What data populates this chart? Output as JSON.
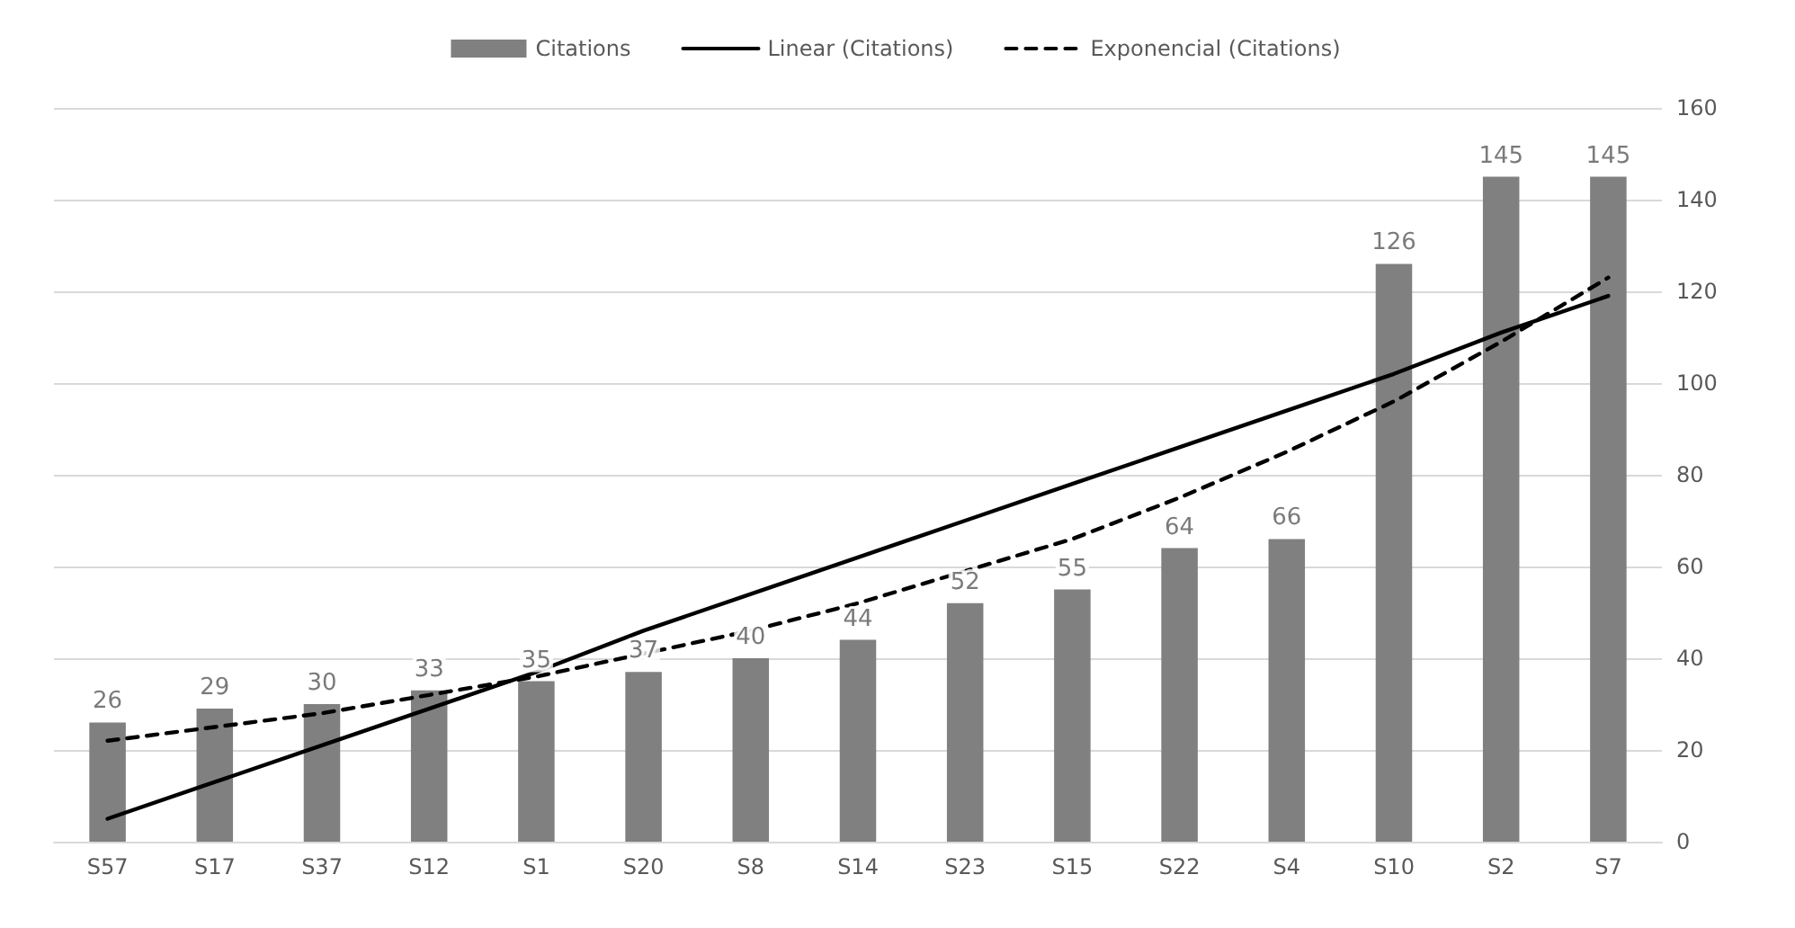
{
  "chart_data": {
    "type": "bar",
    "categories": [
      "S57",
      "S17",
      "S37",
      "S12",
      "S1",
      "S20",
      "S8",
      "S14",
      "S23",
      "S15",
      "S22",
      "S4",
      "S10",
      "S2",
      "S7"
    ],
    "series": [
      {
        "name": "Citations",
        "type": "bar",
        "color": "#808080",
        "values": [
          26,
          29,
          30,
          33,
          35,
          37,
          40,
          44,
          52,
          55,
          64,
          66,
          126,
          145,
          145
        ],
        "data_labels": true
      },
      {
        "name": "Linear (Citations)",
        "type": "line",
        "color": "#000000",
        "line_style": "solid",
        "values": [
          5,
          13,
          21,
          29,
          37,
          46,
          54,
          62,
          70,
          78,
          86,
          94,
          102,
          111,
          119
        ]
      },
      {
        "name": "Exponencial (Citations)",
        "type": "line",
        "color": "#000000",
        "line_style": "dashed",
        "values": [
          22,
          25,
          28,
          32,
          36,
          41,
          46,
          52,
          59,
          66,
          75,
          85,
          96,
          109,
          123
        ]
      }
    ],
    "ylim": [
      0,
      160
    ],
    "yticks": [
      0,
      20,
      40,
      60,
      80,
      100,
      120,
      140,
      160
    ],
    "grid": "y",
    "legend": "top",
    "marker": "none"
  }
}
